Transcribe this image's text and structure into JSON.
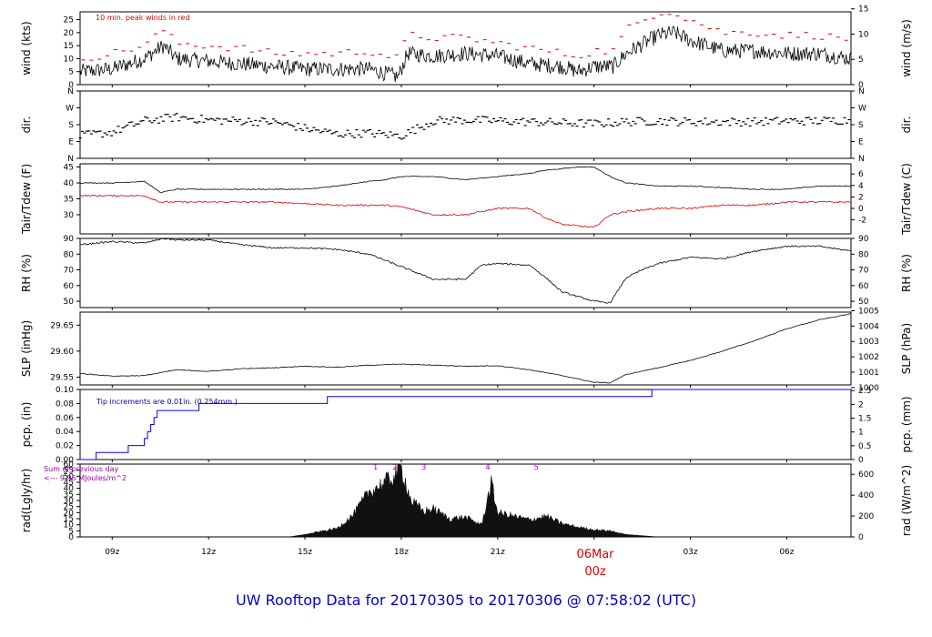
{
  "title": "UW Rooftop Data for 20170305  to  20170306 @ 07:58:02  (UTC)",
  "time_axis": {
    "ticks": [
      "09z",
      "12z",
      "15z",
      "18z",
      "21z",
      "00z",
      "03z",
      "06z"
    ],
    "date_label": "06Mar",
    "date_tick": "00z",
    "range_hours": [
      8.0,
      32.0
    ]
  },
  "panels": {
    "wind": {
      "ylabel_left": "wind (kts)",
      "ylabel_right": "wind (m/s)",
      "yticks_left": [
        "0",
        "5",
        "10",
        "15",
        "20",
        "25"
      ],
      "yticks_right": [
        "0",
        "5",
        "10",
        "15"
      ],
      "note": "10 min. peak winds in red"
    },
    "dir": {
      "ylabel_left": "dir.",
      "ylabel_right": "dir.",
      "yticks_left": [
        "N",
        "E",
        "S",
        "W",
        "N"
      ],
      "yticks_right": [
        "N",
        "E",
        "S",
        "W",
        "N"
      ]
    },
    "temp": {
      "ylabel_left": "Tair/Tdew (F)",
      "ylabel_right": "Tair/Tdew (C)",
      "yticks_left": [
        "30",
        "35",
        "40",
        "45"
      ],
      "yticks_right": [
        "-2",
        "0",
        "2",
        "4",
        "6"
      ]
    },
    "rh": {
      "ylabel_left": "RH (%)",
      "ylabel_right": "RH (%)",
      "yticks_left": [
        "50",
        "60",
        "70",
        "80",
        "90"
      ],
      "yticks_right": [
        "50",
        "60",
        "70",
        "80",
        "90"
      ]
    },
    "slp": {
      "ylabel_left": "SLP (inHg)",
      "ylabel_right": "SLP (hPa)",
      "yticks_left": [
        "29.55",
        "29.60",
        "29.65"
      ],
      "yticks_right": [
        "1000",
        "1001",
        "1002",
        "1003",
        "1004",
        "1005"
      ]
    },
    "pcp": {
      "ylabel_left": "pcp. (in)",
      "ylabel_right": "pcp. (mm)",
      "yticks_left": [
        "0.00",
        "0.02",
        "0.04",
        "0.06",
        "0.08",
        "0.10"
      ],
      "yticks_right": [
        "0",
        "0.5",
        "1",
        "1.5",
        "2",
        "2.5"
      ],
      "note": "Tip increments are 0.01in. (0.254mm.)"
    },
    "rad": {
      "ylabel_left": "rad(Lgly/hr)",
      "ylabel_right": "rad (W/m^2)",
      "yticks_left": [
        "0",
        "5",
        "10",
        "15",
        "20",
        "25",
        "30",
        "35",
        "40",
        "45",
        "50",
        "55",
        "60"
      ],
      "yticks_right": [
        "0",
        "200",
        "400",
        "600"
      ],
      "note_line1": "Sum of previous day",
      "note_line2": "<--- 9.95 MJoules/m^2",
      "markers": [
        "1",
        "2",
        "3",
        "4",
        "5"
      ]
    }
  },
  "colors": {
    "series": "#000000",
    "peak": "#e00000",
    "tdew": "#e00000",
    "pcp": "#0000ff",
    "title": "#0000cc",
    "date": "#e00000",
    "note": "#9900aa"
  },
  "chart_data": [
    {
      "type": "line",
      "name": "wind",
      "x_hours": [
        8,
        9,
        10,
        10.6,
        11,
        12,
        13,
        14,
        15,
        16,
        17,
        17.9,
        18.2,
        19,
        20,
        21,
        22,
        23,
        23.5,
        24,
        24.6,
        25,
        26,
        26.5,
        27,
        28,
        29,
        30,
        31,
        32
      ],
      "series": [
        {
          "name": "wind",
          "values": [
            5,
            6,
            10,
            15,
            10,
            9,
            8,
            7,
            6,
            6,
            6,
            3,
            12,
            11,
            12,
            11,
            8,
            7,
            5,
            7,
            7,
            12,
            19,
            20,
            17,
            13,
            13,
            12,
            12,
            10
          ]
        }
      ],
      "peaks_kts": [
        10,
        12,
        15,
        21,
        16,
        15,
        14,
        12,
        12,
        12,
        13,
        10,
        19,
        18,
        18,
        16,
        14,
        12,
        11,
        13,
        13,
        21,
        28,
        28,
        25,
        20,
        20,
        19,
        19,
        17
      ],
      "ylim": [
        0,
        28
      ]
    },
    {
      "type": "scatter",
      "name": "dir",
      "x_hours": [
        8,
        9,
        10,
        11,
        12,
        13,
        14,
        15,
        16,
        17,
        18,
        19,
        20,
        21,
        22,
        23,
        24,
        25,
        26,
        27,
        28,
        29,
        30,
        31,
        32
      ],
      "series": [
        {
          "name": "dir_deg",
          "values": [
            120,
            140,
            200,
            220,
            205,
            200,
            195,
            160,
            130,
            135,
            120,
            200,
            205,
            200,
            195,
            190,
            185,
            195,
            200,
            195,
            195,
            195,
            200,
            200,
            205
          ]
        }
      ],
      "ylim": [
        0,
        360
      ]
    },
    {
      "type": "line",
      "name": "temp",
      "x_hours": [
        8,
        9,
        10,
        10.5,
        11,
        12,
        13,
        14,
        15,
        16,
        17,
        17.5,
        18,
        19,
        20,
        21,
        22,
        22.5,
        23,
        23.5,
        24,
        24.5,
        25,
        26,
        27,
        28,
        29,
        30,
        31,
        32
      ],
      "series": [
        {
          "name": "Tair",
          "values": [
            40,
            40,
            40.5,
            37,
            38,
            38,
            38,
            38,
            38,
            39,
            40.5,
            41,
            42,
            42,
            41,
            42,
            43,
            44,
            44.5,
            45,
            45,
            42,
            40,
            39,
            39,
            38.5,
            38,
            38,
            39,
            39
          ]
        },
        {
          "name": "Tdew",
          "values": [
            36,
            36,
            36,
            34,
            34,
            34,
            34,
            34,
            33.5,
            33,
            33,
            33,
            32.5,
            30,
            30,
            32,
            32,
            29,
            27,
            26.5,
            26,
            30,
            31,
            32,
            32,
            33,
            33,
            34,
            34,
            34
          ]
        }
      ],
      "ylim": [
        24,
        46
      ]
    },
    {
      "type": "line",
      "name": "rh",
      "x_hours": [
        8,
        9,
        10,
        10.6,
        11,
        12,
        13,
        14,
        15,
        16,
        17,
        18,
        19,
        20,
        20.5,
        21,
        22,
        22.5,
        23,
        24,
        24.5,
        25,
        25.5,
        26,
        27,
        28,
        29,
        30,
        31,
        32
      ],
      "series": [
        {
          "name": "RH",
          "values": [
            86,
            88,
            87,
            90,
            89,
            89,
            86,
            84,
            84,
            83,
            80,
            72,
            64,
            64,
            73,
            74,
            73,
            65,
            56,
            50,
            49,
            65,
            70,
            74,
            78,
            77,
            82,
            85,
            85,
            82
          ]
        }
      ],
      "ylim": [
        46,
        90
      ]
    },
    {
      "type": "line",
      "name": "slp",
      "x_hours": [
        8,
        9,
        10,
        11,
        12,
        13,
        14,
        15,
        16,
        17,
        18,
        19,
        20,
        21,
        22,
        23,
        24,
        24.5,
        25,
        26,
        27,
        28,
        29,
        30,
        31,
        32
      ],
      "series": [
        {
          "name": "SLP",
          "values": [
            29.557,
            29.552,
            29.553,
            29.564,
            29.561,
            29.566,
            29.568,
            29.571,
            29.569,
            29.573,
            29.575,
            29.573,
            29.571,
            29.572,
            29.564,
            29.553,
            29.54,
            29.539,
            29.555,
            29.568,
            29.582,
            29.6,
            29.62,
            29.643,
            29.66,
            29.672
          ]
        }
      ],
      "ylim": [
        29.535,
        29.675
      ]
    },
    {
      "type": "line",
      "name": "pcp",
      "x_hours": [
        8,
        8.5,
        9.5,
        10,
        10.1,
        10.2,
        10.3,
        10.4,
        10.6,
        11.7,
        15.7,
        25.8,
        32
      ],
      "series": [
        {
          "name": "pcp_cum_in",
          "values": [
            0.0,
            0.01,
            0.02,
            0.03,
            0.04,
            0.05,
            0.06,
            0.07,
            0.07,
            0.08,
            0.09,
            0.1,
            0.1
          ]
        }
      ],
      "ylim": [
        0,
        0.1
      ]
    },
    {
      "type": "area",
      "name": "rad",
      "x_hours": [
        14.5,
        15,
        16,
        16.5,
        17,
        17.5,
        17.8,
        18,
        18.3,
        18.7,
        19,
        19.5,
        20,
        20.5,
        20.8,
        21,
        22,
        22.5,
        23,
        23.5,
        24,
        24.5,
        25,
        25.5,
        26
      ],
      "series": [
        {
          "name": "rad_Lgly_hr",
          "values": [
            0,
            2,
            7,
            18,
            37,
            45,
            50,
            57,
            30,
            21,
            23,
            15,
            16,
            10,
            44,
            20,
            14,
            17,
            11,
            8,
            6,
            5,
            2,
            1,
            0
          ]
        }
      ],
      "ylim": [
        0,
        60
      ]
    }
  ]
}
